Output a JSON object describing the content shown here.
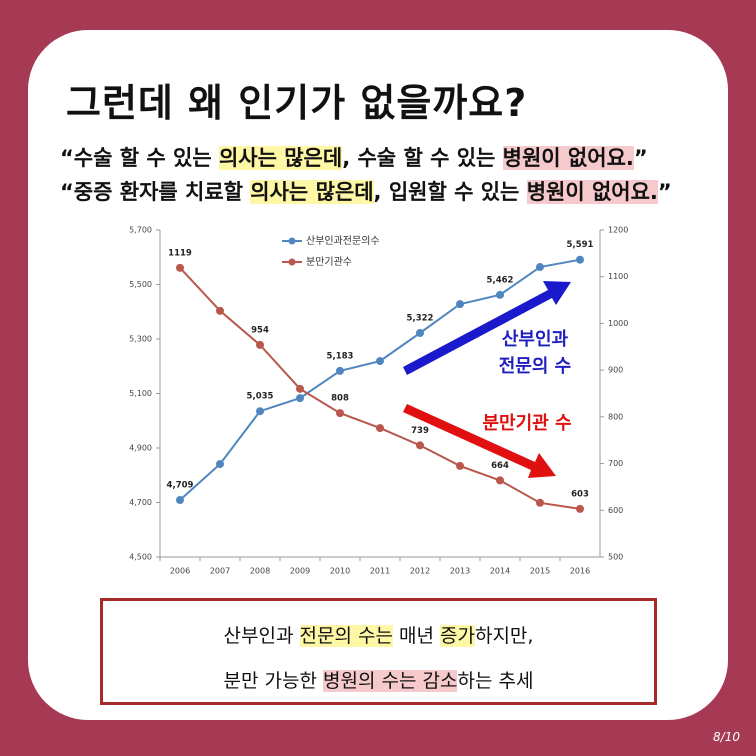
{
  "header": {
    "title": "그런데 왜 인기가 없을까요?"
  },
  "quotes": [
    [
      {
        "text": "“수술 할 수 있는 "
      },
      {
        "text": "의사는 많은데",
        "mark": "yellow"
      },
      {
        "text": ", 수술 할 수 있는 "
      },
      {
        "text": "병원이 없어요.",
        "mark": "pink"
      },
      {
        "text": "”"
      }
    ],
    [
      {
        "text": "“중증 환자를 치료할 "
      },
      {
        "text": "의사는 많은데",
        "mark": "yellow"
      },
      {
        "text": ", 입원할 수 있는 "
      },
      {
        "text": "병원이 없어요.",
        "mark": "pink"
      },
      {
        "text": "”"
      }
    ]
  ],
  "chart_data": {
    "type": "line",
    "categories": [
      "2006",
      "2007",
      "2008",
      "2009",
      "2010",
      "2011",
      "2012",
      "2013",
      "2014",
      "2015",
      "2016"
    ],
    "series": [
      {
        "name": "산부인과전문의수",
        "color": "#4f86c0",
        "axis": "y",
        "values": [
          4709,
          4841,
          5035,
          5083,
          5183,
          5219,
          5322,
          5428,
          5462,
          5564,
          5591
        ],
        "value_labels": [
          "4,709",
          null,
          "5,035",
          null,
          "5,183",
          null,
          "5,322",
          null,
          "5,462",
          null,
          "5,591"
        ]
      },
      {
        "name": "분만기관수",
        "color": "#b9574c",
        "axis": "y2",
        "values": [
          1119,
          1027,
          954,
          860,
          808,
          776,
          739,
          695,
          664,
          616,
          603
        ],
        "value_labels": [
          "1119",
          null,
          "954",
          null,
          "808",
          null,
          "739",
          null,
          "664",
          null,
          "603"
        ]
      }
    ],
    "ylim": [
      4500,
      5700
    ],
    "yticks": [
      {
        "value": 4500,
        "label": "4,500"
      },
      {
        "value": 4700,
        "label": "4,700"
      },
      {
        "value": 4900,
        "label": "4,900"
      },
      {
        "value": 5100,
        "label": "5,100"
      },
      {
        "value": 5300,
        "label": "5,300"
      },
      {
        "value": 5500,
        "label": "5,500"
      },
      {
        "value": 5700,
        "label": "5,700"
      }
    ],
    "y2lim": [
      500,
      1200
    ],
    "y2ticks": [
      500,
      600,
      700,
      800,
      900,
      1000,
      1100,
      1200
    ],
    "annotations": [
      {
        "text": "산부인과",
        "color": "#1f1fbf"
      },
      {
        "text": "전문의 수",
        "color": "#1f1fbf"
      },
      {
        "text": "분만기관 수",
        "color": "#e01010"
      }
    ]
  },
  "summary": [
    [
      {
        "text": "산부인과 "
      },
      {
        "text": "전문의 수는",
        "mark": "yellow"
      },
      {
        "text": " 매년 "
      },
      {
        "text": "증가",
        "mark": "yellow"
      },
      {
        "text": "하지만,"
      }
    ],
    [
      {
        "text": "분만 가능한 "
      },
      {
        "text": "병원의 수는 감소",
        "mark": "pink"
      },
      {
        "text": "하는 추세"
      }
    ]
  ],
  "page": "8/10"
}
